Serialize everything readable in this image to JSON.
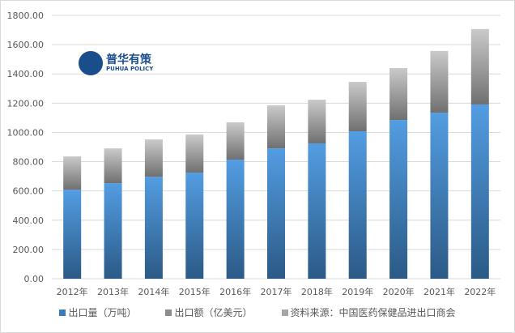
{
  "chart_data": {
    "type": "bar",
    "stacked": true,
    "title": "",
    "categories": [
      "2012年",
      "2013年",
      "2014年",
      "2015年",
      "2016年",
      "2017年",
      "2018年",
      "2019年",
      "2020年",
      "2021年",
      "2022年"
    ],
    "series": [
      {
        "name": "出口量（万吨）",
        "color": "#4a90d9",
        "values": [
          608,
          653,
          697,
          725,
          814,
          891,
          925,
          1008,
          1085,
          1135,
          1191
        ]
      },
      {
        "name": "出口额（亿美元）",
        "color": "#a6a6a6",
        "values": [
          228,
          238,
          255,
          261,
          255,
          294,
          299,
          338,
          355,
          422,
          516
        ]
      }
    ],
    "source_note": "资料来源：中国医药保健品进出口商会",
    "ylim": [
      0,
      1800
    ],
    "yticks": [
      "0.00",
      "200.00",
      "400.00",
      "600.00",
      "800.00",
      "1000.00",
      "1200.00",
      "1400.00",
      "1600.00",
      "1800.00"
    ],
    "grid": true,
    "legend_position": "bottom"
  },
  "watermark": {
    "name": "普华有策",
    "sub": "PUHUA POLICY"
  }
}
